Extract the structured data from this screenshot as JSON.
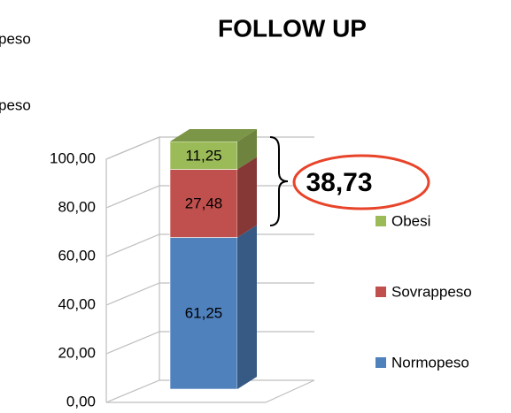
{
  "chart_data": {
    "type": "stacked_bar_3d",
    "title": "FOLLOW UP",
    "fragments": [
      "peso",
      "peso"
    ],
    "categories": [
      null
    ],
    "series": [
      {
        "name": "Normopeso",
        "color": "#4f81bd",
        "values": [
          61.25
        ],
        "value_labels": [
          "61,25"
        ]
      },
      {
        "name": "Sovrappeso",
        "color": "#c0504d",
        "values": [
          27.48
        ],
        "value_labels": [
          "27,48"
        ]
      },
      {
        "name": "Obesi",
        "color": "#9bbb59",
        "values": [
          11.25
        ],
        "value_labels": [
          "11,25"
        ]
      }
    ],
    "annotation": "38,73",
    "ylim": [
      0,
      100
    ],
    "yticks": [
      {
        "value": 0,
        "label": "0,00"
      },
      {
        "value": 20,
        "label": "20,00"
      },
      {
        "value": 40,
        "label": "40,00"
      },
      {
        "value": 60,
        "label": "60,00"
      },
      {
        "value": 80,
        "label": "80,00"
      },
      {
        "value": 100,
        "label": "100,00"
      }
    ],
    "grid": true,
    "legend": "right"
  }
}
